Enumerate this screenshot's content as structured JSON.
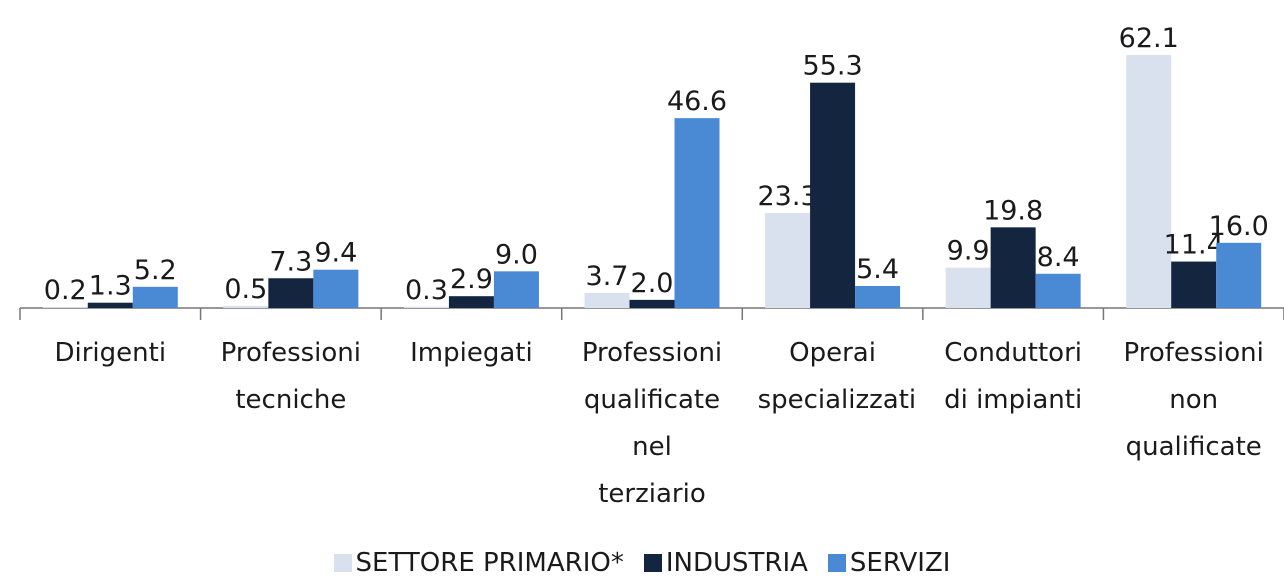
{
  "chart_data": {
    "type": "bar",
    "categories": [
      "Dirigenti",
      "Professioni tecniche",
      "Impiegati",
      "Professioni qualificate nel terziario",
      "Operai specializzati",
      "Conduttori di impianti",
      "Professioni non qualificate"
    ],
    "series": [
      {
        "name": "SETTORE PRIMARIO*",
        "color": "#d9e1ef",
        "values": [
          0.2,
          0.5,
          0.3,
          3.7,
          23.3,
          9.9,
          62.1
        ],
        "value_labels": [
          "0.2",
          "0.5",
          "0.3",
          "3.7",
          "23.3",
          "9.9",
          "62.1"
        ]
      },
      {
        "name": "INDUSTRIA",
        "color": "#13253f",
        "values": [
          1.3,
          7.3,
          2.9,
          2.0,
          55.3,
          19.8,
          11.4
        ],
        "value_labels": [
          "1.3",
          "7.3",
          "2.9",
          "2.0",
          "55.3",
          "19.8",
          "11.4"
        ]
      },
      {
        "name": "SERVIZI",
        "color": "#4a8ad4",
        "values": [
          5.2,
          9.4,
          9.0,
          46.6,
          5.4,
          8.4,
          16.0
        ],
        "value_labels": [
          "5.2",
          "9.4",
          "9.0",
          "46.6",
          "5.4",
          "8.4",
          "16.0"
        ]
      }
    ],
    "legend": "bottom"
  }
}
